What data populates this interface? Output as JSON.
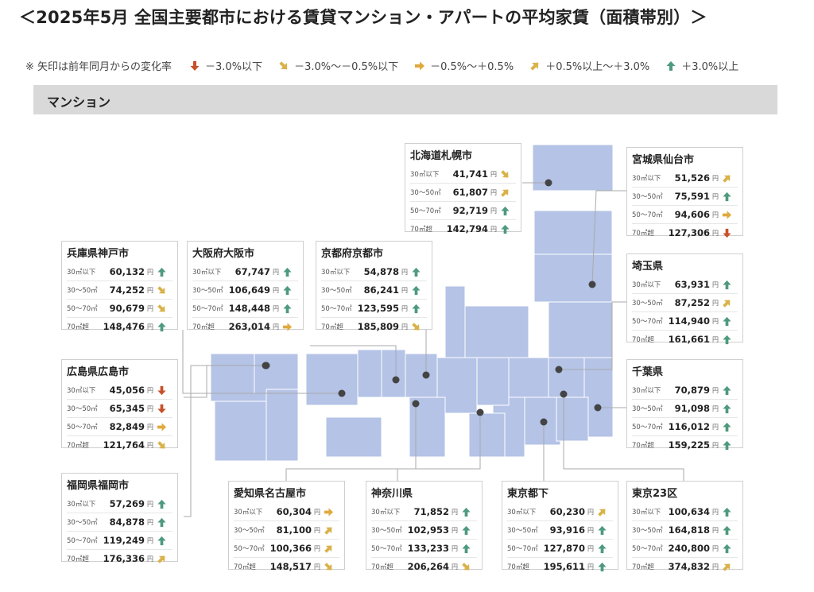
{
  "title": "＜2025年5月 全国主要都市における賃貸マンション・アパートの平均家賃（面積帯別）＞",
  "legend": {
    "note": "※ 矢印は前年同月からの変化率",
    "items": [
      {
        "dir": "down",
        "label": "－3.0%以下",
        "color": "#c8502a"
      },
      {
        "dir": "down-right",
        "label": "－3.0%～－0.5%以下",
        "color": "#d9b24a"
      },
      {
        "dir": "right",
        "label": "－0.5%～＋0.5%",
        "color": "#e0a93c"
      },
      {
        "dir": "up-right",
        "label": "＋0.5%以上～＋3.0%",
        "color": "#d9b24a"
      },
      {
        "dir": "up",
        "label": "＋3.0%以上",
        "color": "#4e9a7e"
      }
    ]
  },
  "section": "マンション",
  "yen": "円",
  "colors": {
    "map": "#b4c3e6",
    "dot": "#444444",
    "line": "#aaaaaa"
  },
  "chart_data": {
    "type": "table",
    "area_classes": [
      "30㎡以下",
      "30～50㎡",
      "50～70㎡",
      "70㎡超"
    ],
    "cities": [
      {
        "name": "北海道札幌市",
        "values": [
          "41,741",
          "61,807",
          "92,719",
          "142,794"
        ],
        "trend": [
          "down-right",
          "up-right",
          "up",
          "up"
        ]
      },
      {
        "name": "宮城県仙台市",
        "values": [
          "51,526",
          "75,591",
          "94,606",
          "127,306"
        ],
        "trend": [
          "up-right",
          "up",
          "right",
          "down"
        ]
      },
      {
        "name": "兵庫県神戸市",
        "values": [
          "60,132",
          "74,252",
          "90,679",
          "148,476"
        ],
        "trend": [
          "up",
          "down-right",
          "down-right",
          "up"
        ]
      },
      {
        "name": "大阪府大阪市",
        "values": [
          "67,747",
          "106,649",
          "148,448",
          "263,014"
        ],
        "trend": [
          "up",
          "up",
          "up",
          "right"
        ]
      },
      {
        "name": "京都府京都市",
        "values": [
          "54,878",
          "86,241",
          "123,595",
          "185,809"
        ],
        "trend": [
          "up",
          "up",
          "up",
          "down-right"
        ]
      },
      {
        "name": "埼玉県",
        "values": [
          "63,931",
          "87,252",
          "114,940",
          "161,661"
        ],
        "trend": [
          "up",
          "up-right",
          "up",
          "up"
        ]
      },
      {
        "name": "広島県広島市",
        "values": [
          "45,056",
          "65,345",
          "82,849",
          "121,764"
        ],
        "trend": [
          "down",
          "down",
          "right",
          "down-right"
        ]
      },
      {
        "name": "千葉県",
        "values": [
          "70,879",
          "91,098",
          "116,012",
          "159,225"
        ],
        "trend": [
          "up",
          "up",
          "up",
          "up"
        ]
      },
      {
        "name": "福岡県福岡市",
        "values": [
          "57,269",
          "84,878",
          "119,249",
          "176,336"
        ],
        "trend": [
          "up",
          "up",
          "up",
          "up-right"
        ]
      },
      {
        "name": "愛知県名古屋市",
        "values": [
          "60,304",
          "81,100",
          "100,366",
          "148,517"
        ],
        "trend": [
          "right",
          "up-right",
          "up-right",
          "down-right"
        ]
      },
      {
        "name": "神奈川県",
        "values": [
          "71,852",
          "102,953",
          "133,233",
          "206,264"
        ],
        "trend": [
          "up",
          "up",
          "up",
          "down-right"
        ]
      },
      {
        "name": "東京都下",
        "values": [
          "60,230",
          "93,916",
          "127,870",
          "195,611"
        ],
        "trend": [
          "up-right",
          "up",
          "up",
          "up"
        ]
      },
      {
        "name": "東京23区",
        "values": [
          "100,634",
          "164,818",
          "240,800",
          "374,832"
        ],
        "trend": [
          "up",
          "up",
          "up",
          "up-right"
        ]
      }
    ]
  }
}
